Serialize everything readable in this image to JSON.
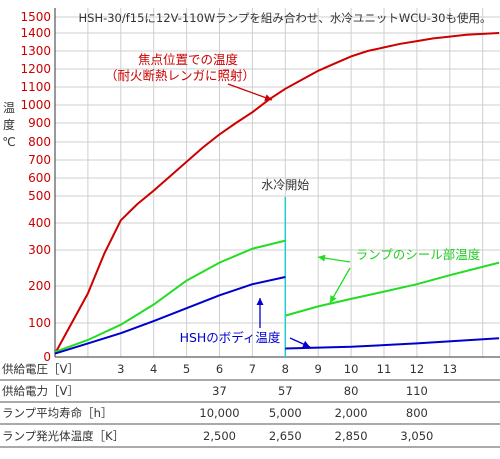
{
  "chart_data": {
    "type": "line",
    "title": "HSH-30/f15に12V-110Wランプを組み合わせ、水冷ユニットWCU-30も使用。",
    "ylabel_chars": [
      "温",
      "度",
      "℃"
    ],
    "ylim": [
      0,
      1550
    ],
    "xlim": [
      1,
      14.5
    ],
    "y_ticks": [
      {
        "label": "0",
        "value": 0
      },
      {
        "label": "100",
        "value": 100
      },
      {
        "label": "200",
        "value": 200
      },
      {
        "label": "300",
        "value": 300
      },
      {
        "label": "400",
        "value": 400
      },
      {
        "label": "500",
        "value": 500
      },
      {
        "label": "600",
        "value": 600
      },
      {
        "label": "700",
        "value": 700
      },
      {
        "label": "800",
        "value": 800
      },
      {
        "label": "900",
        "value": 900
      },
      {
        "label": "1000",
        "value": 1000
      },
      {
        "label": "1100",
        "value": 1100
      },
      {
        "label": "1200",
        "value": 1200
      },
      {
        "label": "1300",
        "value": 1300
      },
      {
        "label": "1400",
        "value": 1400
      },
      {
        "label": "1500",
        "value": 1500
      }
    ],
    "x_ticks": [
      "3",
      "4",
      "5",
      "6",
      "7",
      "8",
      "9",
      "10",
      "11",
      "12",
      "13"
    ],
    "x_tick_values": [
      3,
      4,
      5,
      6,
      7,
      8,
      9,
      10,
      11,
      12,
      13
    ],
    "series": [
      {
        "name": "焦点位置での温度（耐火断熱レンガに照射）",
        "color": "#cc0000",
        "points": [
          [
            1,
            10
          ],
          [
            2,
            180
          ],
          [
            2.5,
            290
          ],
          [
            3,
            410
          ],
          [
            3.5,
            470
          ],
          [
            4,
            530
          ],
          [
            4.5,
            610
          ],
          [
            5,
            690
          ],
          [
            5.5,
            770
          ],
          [
            6,
            840
          ],
          [
            6.5,
            900
          ],
          [
            7,
            960
          ],
          [
            7.5,
            1030
          ],
          [
            8,
            1090
          ],
          [
            8.5,
            1140
          ],
          [
            9,
            1190
          ],
          [
            9.5,
            1230
          ],
          [
            10,
            1270
          ],
          [
            10.5,
            1300
          ],
          [
            11,
            1320
          ],
          [
            11.5,
            1340
          ],
          [
            12,
            1355
          ],
          [
            12.5,
            1370
          ],
          [
            13,
            1380
          ],
          [
            13.5,
            1390
          ],
          [
            14,
            1395
          ],
          [
            14.5,
            1400
          ]
        ]
      },
      {
        "name": "ランプのシール部温度",
        "color": "#22dd22",
        "points": [
          [
            1,
            15
          ],
          [
            2,
            50
          ],
          [
            3,
            95
          ],
          [
            4,
            150
          ],
          [
            5,
            215
          ],
          [
            6,
            265
          ],
          [
            7,
            305
          ],
          [
            8,
            335
          ]
        ],
        "points_after": [
          [
            8,
            120
          ],
          [
            9,
            145
          ],
          [
            10,
            165
          ],
          [
            11,
            185
          ],
          [
            12,
            205
          ],
          [
            13,
            230
          ],
          [
            14.5,
            265
          ]
        ]
      },
      {
        "name": "HSHのボディ温度",
        "color": "#0000cc",
        "points": [
          [
            1,
            10
          ],
          [
            2,
            40
          ],
          [
            3,
            70
          ],
          [
            4,
            105
          ],
          [
            5,
            140
          ],
          [
            6,
            175
          ],
          [
            7,
            205
          ],
          [
            8,
            225
          ]
        ],
        "points_after": [
          [
            8,
            25
          ],
          [
            10,
            30
          ],
          [
            12,
            40
          ],
          [
            14.5,
            55
          ]
        ]
      }
    ],
    "annotations": {
      "red_label_1": "焦点位置での温度",
      "red_label_2": "（耐火断熱レンガに照射）",
      "green_label": "ランプのシール部温度",
      "blue_label": "HSHのボディ温度",
      "cooling_label": "水冷開始",
      "cooling_x": 8
    },
    "table": {
      "rows": [
        {
          "label": "供給電圧［V］",
          "values": [],
          "is_axis_row": true
        },
        {
          "label": "供給電力［V］",
          "values": [
            {
              "x": 6,
              "v": "37"
            },
            {
              "x": 8,
              "v": "57"
            },
            {
              "x": 10,
              "v": "80"
            },
            {
              "x": 12,
              "v": "110"
            }
          ]
        },
        {
          "label": "ランプ平均寿命［h］",
          "values": [
            {
              "x": 6,
              "v": "10,000"
            },
            {
              "x": 8,
              "v": "5,000"
            },
            {
              "x": 10,
              "v": "2,000"
            },
            {
              "x": 12,
              "v": "800"
            }
          ]
        },
        {
          "label": "ランプ発光体温度［K］",
          "values": [
            {
              "x": 6,
              "v": "2,500"
            },
            {
              "x": 8,
              "v": "2,650"
            },
            {
              "x": 10,
              "v": "2,850"
            },
            {
              "x": 12,
              "v": "3,050"
            }
          ]
        }
      ]
    },
    "grid": true
  }
}
